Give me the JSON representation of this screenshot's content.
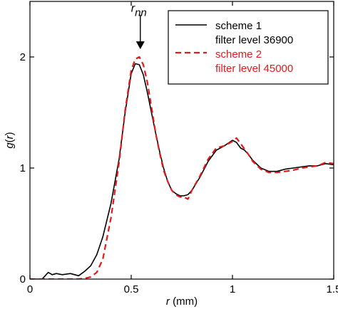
{
  "chart_data": {
    "type": "line",
    "xlabel_var": "r",
    "xlabel_unit": " (mm)",
    "ylabel_var": "g",
    "ylabel_paren_open": "(",
    "ylabel_arg": "r",
    "ylabel_paren_close": ")",
    "xlim": [
      0,
      1.5
    ],
    "ylim": [
      0,
      2.5
    ],
    "x_ticks": [
      0,
      0.5,
      1,
      1.5
    ],
    "x_tick_labels": [
      "0",
      "0.5",
      "1",
      "1.5"
    ],
    "y_ticks": [
      0,
      1,
      2
    ],
    "y_tick_labels": [
      "0",
      "1",
      "2"
    ],
    "grid": false,
    "legend_position": "top-right",
    "annotation": {
      "base": "r",
      "subscript": "nn",
      "x": 0.545,
      "arrow_top_y": 2.38,
      "arrow_tip_y": 2.07
    },
    "series": [
      {
        "legend_line1": "scheme 1",
        "legend_line2": "filter level 36900",
        "color": "#000000",
        "style": "solid",
        "x": [
          0.0,
          0.06,
          0.07,
          0.09,
          0.11,
          0.13,
          0.16,
          0.2,
          0.24,
          0.27,
          0.3,
          0.33,
          0.36,
          0.4,
          0.44,
          0.47,
          0.5,
          0.52,
          0.54,
          0.56,
          0.58,
          0.6,
          0.62,
          0.64,
          0.66,
          0.68,
          0.7,
          0.72,
          0.74,
          0.76,
          0.78,
          0.8,
          0.84,
          0.88,
          0.92,
          0.96,
          1.0,
          1.02,
          1.04,
          1.06,
          1.08,
          1.1,
          1.14,
          1.18,
          1.22,
          1.26,
          1.3,
          1.34,
          1.38,
          1.42,
          1.46,
          1.5
        ],
        "y": [
          0.0,
          0.0,
          0.02,
          0.06,
          0.04,
          0.05,
          0.04,
          0.05,
          0.03,
          0.07,
          0.12,
          0.22,
          0.38,
          0.68,
          1.08,
          1.5,
          1.85,
          1.94,
          1.93,
          1.84,
          1.68,
          1.5,
          1.32,
          1.15,
          1.0,
          0.88,
          0.8,
          0.77,
          0.75,
          0.75,
          0.76,
          0.8,
          0.92,
          1.06,
          1.16,
          1.2,
          1.25,
          1.23,
          1.18,
          1.16,
          1.12,
          1.07,
          1.0,
          0.97,
          0.97,
          0.99,
          1.0,
          1.01,
          1.02,
          1.02,
          1.04,
          1.03
        ]
      },
      {
        "legend_line1": "scheme 2",
        "legend_line2": "filter level 45000",
        "color": "#e31a1c",
        "style": "dashed",
        "x": [
          0.0,
          0.04,
          0.07,
          0.1,
          0.13,
          0.16,
          0.2,
          0.24,
          0.28,
          0.3,
          0.33,
          0.36,
          0.4,
          0.44,
          0.47,
          0.5,
          0.52,
          0.54,
          0.56,
          0.58,
          0.6,
          0.62,
          0.64,
          0.66,
          0.68,
          0.7,
          0.72,
          0.74,
          0.76,
          0.78,
          0.8,
          0.84,
          0.88,
          0.92,
          0.96,
          1.0,
          1.02,
          1.04,
          1.06,
          1.08,
          1.1,
          1.14,
          1.18,
          1.22,
          1.26,
          1.3,
          1.34,
          1.38,
          1.42,
          1.46,
          1.5
        ],
        "y": [
          0.0,
          0.0,
          0.0,
          0.0,
          0.0,
          0.0,
          0.0,
          0.0,
          0.01,
          0.02,
          0.06,
          0.18,
          0.55,
          1.05,
          1.52,
          1.88,
          1.98,
          2.0,
          1.93,
          1.77,
          1.55,
          1.32,
          1.14,
          0.98,
          0.88,
          0.8,
          0.76,
          0.74,
          0.74,
          0.72,
          0.8,
          0.93,
          1.08,
          1.18,
          1.2,
          1.24,
          1.27,
          1.22,
          1.17,
          1.12,
          1.06,
          0.99,
          0.96,
          0.96,
          0.97,
          0.98,
          1.0,
          1.01,
          1.02,
          1.05,
          1.04
        ]
      }
    ]
  }
}
